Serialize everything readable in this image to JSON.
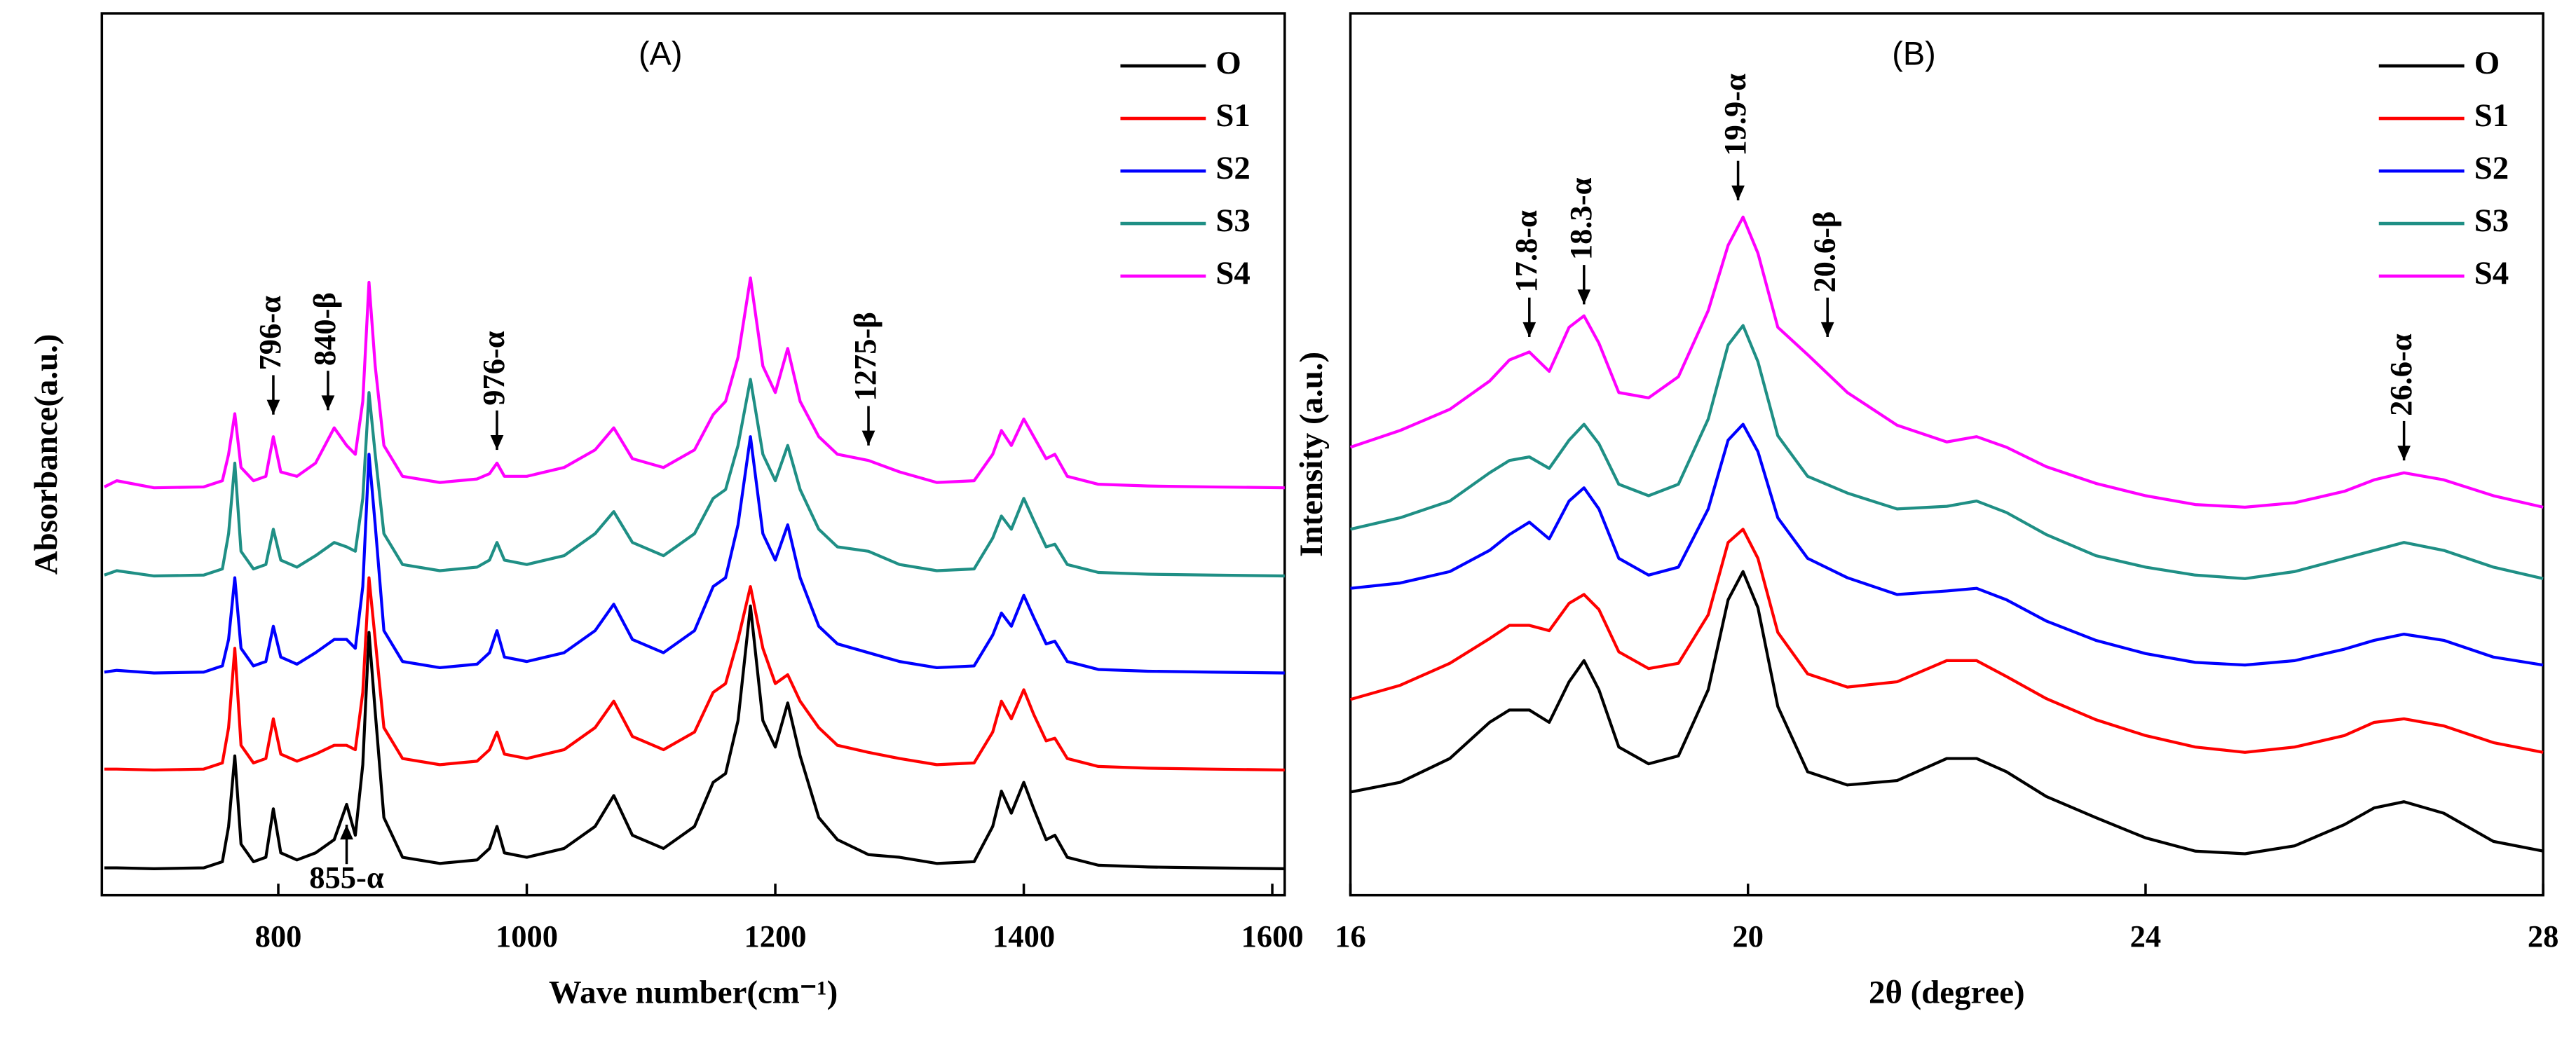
{
  "chart_data": [
    {
      "type": "line",
      "title": "(A)",
      "xlabel": "Wave number(cm⁻¹)",
      "ylabel": "Absorbance(a.u.)",
      "legend": "upper right",
      "xlim": [
        658,
        1610
      ],
      "xticks": [
        800,
        1000,
        1200,
        1400,
        1600
      ],
      "ylim": [
        0,
        100
      ],
      "x": [
        660,
        670,
        700,
        740,
        755,
        760,
        765,
        770,
        780,
        790,
        796,
        802,
        815,
        830,
        845,
        855,
        862,
        868,
        873,
        878,
        885,
        900,
        930,
        960,
        970,
        976,
        982,
        1000,
        1030,
        1055,
        1070,
        1085,
        1110,
        1135,
        1150,
        1160,
        1170,
        1180,
        1190,
        1200,
        1210,
        1220,
        1235,
        1250,
        1275,
        1300,
        1330,
        1360,
        1375,
        1382,
        1390,
        1400,
        1408,
        1418,
        1425,
        1435,
        1460,
        1500,
        1550,
        1610
      ],
      "series": [
        {
          "name": "O",
          "color": "#000000",
          "values": [
            3.1,
            3.1,
            3.0,
            3.1,
            3.8,
            7.8,
            15.8,
            5.8,
            3.8,
            4.3,
            9.8,
            4.8,
            4.0,
            4.8,
            6.3,
            10.3,
            6.8,
            14.8,
            29.8,
            20.8,
            8.8,
            4.3,
            3.6,
            4.0,
            5.3,
            7.8,
            4.8,
            4.3,
            5.3,
            7.8,
            11.3,
            6.8,
            5.3,
            7.8,
            12.8,
            13.8,
            19.8,
            32.8,
            19.8,
            16.8,
            21.8,
            15.8,
            8.8,
            6.3,
            4.6,
            4.3,
            3.6,
            3.8,
            7.8,
            11.8,
            9.3,
            12.8,
            9.8,
            6.3,
            6.8,
            4.3,
            3.4,
            3.2,
            3.1,
            3.0
          ]
        },
        {
          "name": "S1",
          "color": "#ff0000",
          "values": [
            14.3,
            14.3,
            14.2,
            14.3,
            15,
            19,
            28,
            17,
            15,
            15.5,
            20,
            16,
            15.2,
            16,
            17,
            17,
            16.5,
            23,
            36,
            29,
            19,
            15.5,
            14.8,
            15.2,
            16.5,
            18.5,
            16,
            15.5,
            16.5,
            19,
            22,
            18,
            16.5,
            18.5,
            23,
            24,
            29,
            35,
            28,
            24,
            25,
            22,
            19,
            17,
            16.2,
            15.5,
            14.8,
            15,
            18.5,
            22,
            20,
            23.3,
            20.5,
            17.5,
            17.8,
            15.5,
            14.6,
            14.4,
            14.3,
            14.2
          ]
        },
        {
          "name": "S2",
          "color": "#0000ff",
          "values": [
            25.3,
            25.5,
            25.2,
            25.3,
            26,
            29,
            36,
            28,
            26,
            26.5,
            30.5,
            27,
            26.2,
            27.5,
            29,
            29,
            28,
            35,
            50,
            42,
            30,
            26.5,
            25.8,
            26.2,
            27.5,
            30,
            27,
            26.5,
            27.5,
            30,
            33,
            29,
            27.5,
            30,
            35,
            36,
            42,
            52,
            41,
            38,
            42,
            36,
            30.5,
            28.5,
            27.5,
            26.5,
            25.8,
            26,
            29.5,
            32,
            30.5,
            34,
            31.5,
            28.5,
            28.8,
            26.5,
            25.6,
            25.4,
            25.3,
            25.2
          ]
        },
        {
          "name": "S3",
          "color": "#1f8f85",
          "values": [
            36.3,
            36.8,
            36.2,
            36.3,
            37,
            41,
            49,
            39,
            37,
            37.5,
            41.5,
            38,
            37.2,
            38.5,
            40,
            39.5,
            39,
            45,
            57,
            50,
            41,
            37.5,
            36.8,
            37.2,
            38,
            40,
            38,
            37.5,
            38.5,
            41,
            43.5,
            40,
            38.5,
            41,
            45,
            46,
            51,
            58.5,
            50,
            47,
            51,
            46,
            41.5,
            39.5,
            39,
            37.5,
            36.8,
            37,
            40.5,
            43,
            41.5,
            45,
            42.5,
            39.5,
            39.8,
            37.5,
            36.6,
            36.4,
            36.3,
            36.2
          ]
        },
        {
          "name": "S4",
          "color": "#ff00ff",
          "values": [
            46.3,
            47,
            46.2,
            46.3,
            47,
            50,
            54.6,
            48.5,
            47,
            47.5,
            52,
            48,
            47.5,
            49,
            53,
            51,
            50,
            56,
            69.5,
            60,
            51,
            47.5,
            46.8,
            47.2,
            47.8,
            49,
            47.5,
            47.5,
            48.5,
            50.5,
            53,
            49.5,
            48.5,
            50.5,
            54.5,
            56,
            61,
            70,
            60,
            57,
            62,
            56,
            52,
            50,
            49.3,
            48,
            46.8,
            47,
            50,
            52.7,
            51,
            54,
            52,
            49.5,
            50,
            47.5,
            46.6,
            46.4,
            46.3,
            46.2
          ]
        }
      ],
      "annotations": [
        {
          "text": "796-α",
          "x": 796,
          "y": 54.5
        },
        {
          "text": "840-β",
          "x": 840,
          "y": 55
        },
        {
          "text": "976-α",
          "x": 976,
          "y": 50.5
        },
        {
          "text": "1275-β",
          "x": 1275,
          "y": 51
        },
        {
          "text": "855-α",
          "x": 855,
          "y": 8
        }
      ]
    },
    {
      "type": "line",
      "title": "(B)",
      "xlabel": "2θ (degree)",
      "ylabel": "Intensity (a.u.)",
      "legend": "upper right",
      "xlim": [
        16,
        28
      ],
      "xticks": [
        16,
        20,
        24,
        28
      ],
      "ylim": [
        0,
        100
      ],
      "x": [
        16,
        16.5,
        17,
        17.4,
        17.6,
        17.8,
        18.0,
        18.2,
        18.35,
        18.5,
        18.7,
        19.0,
        19.3,
        19.6,
        19.8,
        19.95,
        20.1,
        20.3,
        20.6,
        21.0,
        21.5,
        22.0,
        22.3,
        22.6,
        23.0,
        23.5,
        24.0,
        24.5,
        25.0,
        25.5,
        26.0,
        26.3,
        26.6,
        27.0,
        27.5,
        28.0
      ],
      "series": [
        {
          "name": "O",
          "color": "#000000",
          "values": [
            11.7,
            12.8,
            15.5,
            19.6,
            21.0,
            21.0,
            19.6,
            24.2,
            26.6,
            23.3,
            16.8,
            14.9,
            15.8,
            23.3,
            33.5,
            36.7,
            32.6,
            21.4,
            14.0,
            12.5,
            13.0,
            15.5,
            15.5,
            14.0,
            11.2,
            8.8,
            6.5,
            5.0,
            4.7,
            5.6,
            8.0,
            9.9,
            10.6,
            9.3,
            6.1,
            5.0
          ]
        },
        {
          "name": "S1",
          "color": "#ff0000",
          "values": [
            22.2,
            23.8,
            26.3,
            29.1,
            30.6,
            30.6,
            30.0,
            33.1,
            34.1,
            32.4,
            27.6,
            25.7,
            26.3,
            31.8,
            40.0,
            41.5,
            38.2,
            29.8,
            25.1,
            23.6,
            24.2,
            26.6,
            26.6,
            24.8,
            22.3,
            19.9,
            18.1,
            16.8,
            16.2,
            16.8,
            18.1,
            19.6,
            20.0,
            19.2,
            17.3,
            16.2
          ]
        },
        {
          "name": "S2",
          "color": "#0000ff",
          "values": [
            34.8,
            35.4,
            36.7,
            39.1,
            40.9,
            42.3,
            40.4,
            44.7,
            46.2,
            43.8,
            38.2,
            36.3,
            37.2,
            43.8,
            51.6,
            53.4,
            50.3,
            42.8,
            38.2,
            36.0,
            34.1,
            34.5,
            34.8,
            33.5,
            31.1,
            28.9,
            27.4,
            26.4,
            26.1,
            26.6,
            27.9,
            28.9,
            29.6,
            28.9,
            27.0,
            26.1
          ]
        },
        {
          "name": "S3",
          "color": "#1f8f85",
          "values": [
            41.5,
            42.8,
            44.7,
            47.9,
            49.3,
            49.7,
            48.4,
            51.6,
            53.4,
            51.2,
            46.6,
            45.3,
            46.6,
            54.0,
            62.4,
            64.6,
            60.5,
            52.1,
            47.5,
            45.6,
            43.8,
            44.1,
            44.7,
            43.4,
            40.9,
            38.5,
            37.2,
            36.3,
            35.9,
            36.7,
            38.2,
            39.1,
            40.0,
            39.1,
            37.2,
            35.9
          ]
        },
        {
          "name": "S4",
          "color": "#ff00ff",
          "values": [
            50.8,
            52.7,
            55.1,
            58.3,
            60.7,
            61.6,
            59.4,
            64.4,
            65.7,
            62.6,
            57.0,
            56.4,
            58.8,
            66.3,
            73.7,
            76.9,
            72.8,
            64.4,
            61.3,
            57.0,
            53.3,
            51.4,
            52.0,
            50.8,
            48.6,
            46.7,
            45.3,
            44.3,
            44.0,
            44.5,
            45.8,
            47.1,
            47.9,
            47.1,
            45.3,
            44.0
          ]
        }
      ],
      "annotations": [
        {
          "text": "17.8-α",
          "x": 17.8,
          "y": 63.3
        },
        {
          "text": "18.3-α",
          "x": 18.35,
          "y": 67
        },
        {
          "text": "19.9-α",
          "x": 19.9,
          "y": 78.8
        },
        {
          "text": "20.6-β",
          "x": 20.8,
          "y": 63.3
        },
        {
          "text": "26.6-α",
          "x": 26.6,
          "y": 49.3
        }
      ]
    }
  ]
}
